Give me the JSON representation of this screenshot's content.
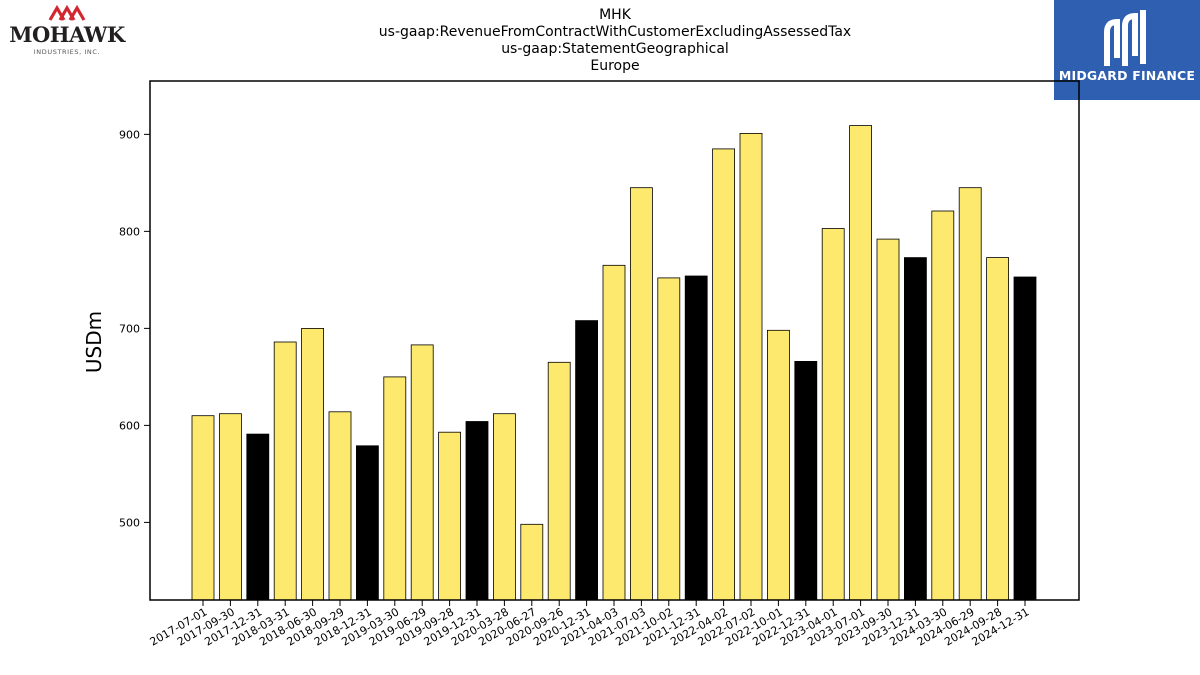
{
  "logos": {
    "left_brand": "MOHAWK",
    "left_subtitle": "INDUSTRIES, INC.",
    "right_brand": "MIDGARD FINANCE",
    "colors": {
      "mohawk_red": "#d22630",
      "midgard_blue": "#2f5fb0"
    }
  },
  "chart_data": {
    "type": "bar",
    "title_lines": [
      "MHK",
      "us-gaap:RevenueFromContractWithCustomerExcludingAssessedTax",
      "us-gaap:StatementGeographical",
      "Europe"
    ],
    "ylabel": "USDm",
    "xlabel": "",
    "ylim": [
      420,
      955
    ],
    "yticks": [
      500,
      600,
      700,
      800,
      900
    ],
    "grid": false,
    "colors": {
      "quarter": "#fde96e",
      "year_end": "#000000",
      "edge": "#000000"
    },
    "categories": [
      "2017-07-01",
      "2017-09-30",
      "2017-12-31",
      "2018-03-31",
      "2018-06-30",
      "2018-09-29",
      "2018-12-31",
      "2019-03-30",
      "2019-06-29",
      "2019-09-28",
      "2019-12-31",
      "2020-03-28",
      "2020-06-27",
      "2020-09-26",
      "2020-12-31",
      "2021-04-03",
      "2021-07-03",
      "2021-10-02",
      "2021-12-31",
      "2022-04-02",
      "2022-07-02",
      "2022-10-01",
      "2022-12-31",
      "2023-04-01",
      "2023-07-01",
      "2023-09-30",
      "2023-12-31",
      "2024-03-30",
      "2024-06-29",
      "2024-09-28",
      "2024-12-31"
    ],
    "values": [
      610,
      612,
      591,
      686,
      700,
      614,
      579,
      650,
      683,
      593,
      604,
      612,
      498,
      665,
      708,
      765,
      845,
      752,
      754,
      885,
      901,
      698,
      666,
      803,
      909,
      792,
      773,
      821,
      845,
      773,
      753
    ]
  }
}
